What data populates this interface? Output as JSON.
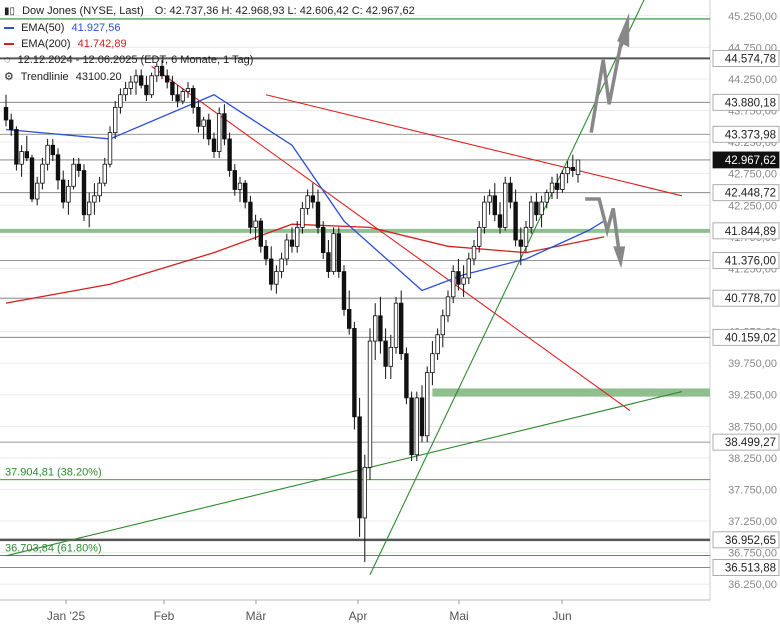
{
  "header": {
    "instrument": "Dow Jones (NYSE, Last)",
    "ohlc": "O: 42.737,36   H: 42.968,93   L: 42.606,42   C: 42.967,62",
    "ema50_label": "EMA(50)",
    "ema50_value": "41.927,56",
    "ema200_label": "EMA(200)",
    "ema200_value": "41.742,89",
    "period": "12.12.2024 - 12.06.2025  (EDT, 6 Monate, 1 Tag)",
    "trendline_label": "Trendlinie",
    "trendline_value": "43100.20"
  },
  "colors": {
    "ema50": "#2b50d8",
    "ema200": "#d42020",
    "trend_red": "#e02020",
    "trend_green": "#2f8a2f",
    "zone_green": "#8fbf8f",
    "last_price_bg": "#111111",
    "forecast_arrow": "#888888"
  },
  "chart_data": {
    "type": "candlestick",
    "ylim": [
      36000,
      45500
    ],
    "y_ticks": [
      "45.250,00",
      "44.750,00",
      "44.250,00",
      "43.750,00",
      "43.250,00",
      "42.750,00",
      "42.250,00",
      "41.750,00",
      "41.250,00",
      "40.750,00",
      "40.250,00",
      "39.750,00",
      "39.250,00",
      "38.750,00",
      "38.250,00",
      "37.750,00",
      "37.250,00",
      "36.750,00",
      "36.250,00"
    ],
    "x_ticks": [
      "Jan '25",
      "Feb",
      "Mär",
      "Apr",
      "Mai",
      "Jun"
    ],
    "level_labels": [
      {
        "value": 44574.78,
        "text": "44.574,78",
        "style": "box"
      },
      {
        "value": 43880.18,
        "text": "43.880,18",
        "style": "box"
      },
      {
        "value": 43373.98,
        "text": "43.373,98",
        "style": "box"
      },
      {
        "value": 42967.62,
        "text": "42.967,62",
        "style": "last"
      },
      {
        "value": 42448.72,
        "text": "42.448,72",
        "style": "box"
      },
      {
        "value": 41844.89,
        "text": "41.844,89",
        "style": "box"
      },
      {
        "value": 41376.0,
        "text": "41.376,00",
        "style": "box"
      },
      {
        "value": 40778.7,
        "text": "40.778,70",
        "style": "box"
      },
      {
        "value": 40159.02,
        "text": "40.159,02",
        "style": "box"
      },
      {
        "value": 38499.27,
        "text": "38.499,27",
        "style": "box"
      },
      {
        "value": 36952.65,
        "text": "36.952,65",
        "style": "box"
      },
      {
        "value": 36513.88,
        "text": "36.513,88",
        "style": "box"
      }
    ],
    "fib_labels": [
      {
        "value": 37904.81,
        "text": "37.904,81 (38.20%)"
      },
      {
        "value": 36703.84,
        "text": "36.703,84 (61.80%)"
      }
    ],
    "green_zone": [
      39220,
      39350
    ],
    "candles": [
      [
        43800,
        44000,
        43500,
        43600
      ],
      [
        43600,
        43700,
        43350,
        43450
      ],
      [
        43450,
        43500,
        42800,
        42900
      ],
      [
        42900,
        43200,
        42700,
        43100
      ],
      [
        43100,
        43350,
        42950,
        43000
      ],
      [
        43000,
        43050,
        42300,
        42350
      ],
      [
        42350,
        42700,
        42250,
        42600
      ],
      [
        42600,
        43000,
        42500,
        42900
      ],
      [
        42900,
        43300,
        42800,
        43200
      ],
      [
        43200,
        43300,
        42950,
        43050
      ],
      [
        43050,
        43150,
        42500,
        42650
      ],
      [
        42650,
        42800,
        42200,
        42300
      ],
      [
        42300,
        42650,
        42100,
        42550
      ],
      [
        42550,
        43000,
        42500,
        42900
      ],
      [
        42900,
        43000,
        42700,
        42800
      ],
      [
        42800,
        42900,
        42000,
        42100
      ],
      [
        42100,
        42450,
        41900,
        42300
      ],
      [
        42300,
        42600,
        42100,
        42400
      ],
      [
        42400,
        42700,
        42300,
        42600
      ],
      [
        42600,
        43000,
        42550,
        42900
      ],
      [
        42900,
        43500,
        42850,
        43400
      ],
      [
        43400,
        43900,
        43300,
        43800
      ],
      [
        43800,
        44100,
        43700,
        44000
      ],
      [
        44000,
        44200,
        43900,
        44100
      ],
      [
        44100,
        44300,
        44000,
        44200
      ],
      [
        44200,
        44400,
        44000,
        44300
      ],
      [
        44300,
        44400,
        44100,
        44150
      ],
      [
        44150,
        44300,
        43900,
        44000
      ],
      [
        44000,
        44350,
        43950,
        44300
      ],
      [
        44300,
        44500,
        44200,
        44450
      ],
      [
        44450,
        44550,
        44250,
        44300
      ],
      [
        44300,
        44400,
        44100,
        44200
      ],
      [
        44200,
        44300,
        43900,
        44000
      ],
      [
        44000,
        44150,
        43800,
        43900
      ],
      [
        43900,
        44100,
        43850,
        44050
      ],
      [
        44050,
        44200,
        43950,
        44100
      ],
      [
        44100,
        44150,
        43700,
        43800
      ],
      [
        43800,
        43900,
        43400,
        43500
      ],
      [
        43500,
        43650,
        43300,
        43600
      ],
      [
        43600,
        43700,
        43200,
        43300
      ],
      [
        43300,
        43400,
        43000,
        43100
      ],
      [
        43100,
        43800,
        43000,
        43700
      ],
      [
        43700,
        43850,
        43200,
        43300
      ],
      [
        43300,
        43400,
        42700,
        42800
      ],
      [
        42800,
        42900,
        42400,
        42500
      ],
      [
        42500,
        42700,
        42300,
        42600
      ],
      [
        42600,
        42650,
        42200,
        42300
      ],
      [
        42300,
        42400,
        41800,
        41900
      ],
      [
        41900,
        42100,
        41700,
        42000
      ],
      [
        42000,
        42050,
        41500,
        41600
      ],
      [
        41600,
        41700,
        41300,
        41400
      ],
      [
        41400,
        41600,
        40900,
        41000
      ],
      [
        41000,
        41300,
        40850,
        41200
      ],
      [
        41200,
        41500,
        41100,
        41400
      ],
      [
        41400,
        41800,
        41300,
        41700
      ],
      [
        41700,
        41900,
        41500,
        41600
      ],
      [
        41600,
        42000,
        41500,
        41900
      ],
      [
        41900,
        42300,
        41800,
        42200
      ],
      [
        42200,
        42500,
        42100,
        42400
      ],
      [
        42400,
        42600,
        42200,
        42300
      ],
      [
        42300,
        42500,
        41800,
        41900
      ],
      [
        41900,
        42000,
        41400,
        41500
      ],
      [
        41500,
        41700,
        41100,
        41200
      ],
      [
        41200,
        41900,
        41150,
        41800
      ],
      [
        41800,
        41900,
        41100,
        41200
      ],
      [
        41200,
        41300,
        40500,
        40600
      ],
      [
        40600,
        40900,
        40200,
        40300
      ],
      [
        40300,
        40400,
        38700,
        38900
      ],
      [
        38900,
        39200,
        37000,
        37300
      ],
      [
        37300,
        38300,
        36600,
        38100
      ],
      [
        38100,
        40300,
        37900,
        40100
      ],
      [
        40100,
        40700,
        39800,
        40500
      ],
      [
        40500,
        40800,
        39900,
        40100
      ],
      [
        40100,
        40300,
        39500,
        39700
      ],
      [
        39700,
        40200,
        39500,
        40000
      ],
      [
        40000,
        40800,
        39900,
        40700
      ],
      [
        40700,
        40900,
        39800,
        39900
      ],
      [
        39900,
        40000,
        39100,
        39200
      ],
      [
        39200,
        39300,
        38200,
        38300
      ],
      [
        38300,
        39300,
        38200,
        39200
      ],
      [
        39200,
        39400,
        38500,
        38600
      ],
      [
        38600,
        39700,
        38500,
        39600
      ],
      [
        39600,
        40100,
        39400,
        39900
      ],
      [
        39900,
        40300,
        39800,
        40200
      ],
      [
        40200,
        40600,
        40000,
        40500
      ],
      [
        40500,
        40900,
        40400,
        40800
      ],
      [
        40800,
        41300,
        40700,
        41200
      ],
      [
        41200,
        41400,
        40900,
        41000
      ],
      [
        41000,
        41300,
        40800,
        41100
      ],
      [
        41100,
        41500,
        41000,
        41400
      ],
      [
        41400,
        41700,
        41300,
        41600
      ],
      [
        41600,
        42000,
        41500,
        41900
      ],
      [
        41900,
        42400,
        41800,
        42300
      ],
      [
        42300,
        42500,
        42100,
        42400
      ],
      [
        42400,
        42600,
        42000,
        42100
      ],
      [
        42100,
        42300,
        41800,
        41900
      ],
      [
        41900,
        42700,
        41850,
        42600
      ],
      [
        42600,
        42700,
        42200,
        42300
      ],
      [
        42300,
        42500,
        41600,
        41700
      ],
      [
        41700,
        41900,
        41300,
        41600
      ],
      [
        41600,
        42000,
        41500,
        41900
      ],
      [
        41900,
        42400,
        41800,
        42300
      ],
      [
        42300,
        42450,
        42000,
        42100
      ],
      [
        42100,
        42400,
        41900,
        42300
      ],
      [
        42300,
        42500,
        42200,
        42450
      ],
      [
        42450,
        42700,
        42350,
        42600
      ],
      [
        42600,
        42750,
        42350,
        42500
      ],
      [
        42500,
        42800,
        42450,
        42750
      ],
      [
        42750,
        42950,
        42600,
        42850
      ],
      [
        42850,
        43050,
        42700,
        42800
      ],
      [
        42737.36,
        42968.93,
        42606.42,
        42967.62
      ]
    ],
    "ema50": [
      [
        0,
        43450
      ],
      [
        20,
        43300
      ],
      [
        40,
        44000
      ],
      [
        55,
        43200
      ],
      [
        65,
        42000
      ],
      [
        80,
        40900
      ],
      [
        88,
        41150
      ],
      [
        100,
        41400
      ],
      [
        112,
        41850
      ],
      [
        115,
        42000
      ]
    ],
    "ema200": [
      [
        0,
        40700
      ],
      [
        20,
        41000
      ],
      [
        40,
        41500
      ],
      [
        55,
        41950
      ],
      [
        70,
        41900
      ],
      [
        85,
        41600
      ],
      [
        100,
        41500
      ],
      [
        115,
        41750
      ]
    ],
    "trend_lines": [
      {
        "color": "red",
        "points": [
          [
            28,
            44450
          ],
          [
            120,
            39000
          ]
        ]
      },
      {
        "color": "red",
        "points": [
          [
            50,
            44000
          ],
          [
            130,
            42400
          ]
        ]
      },
      {
        "color": "green",
        "points": [
          [
            70,
            36400
          ],
          [
            125,
            45900
          ]
        ]
      },
      {
        "color": "green",
        "points": [
          [
            0,
            36700
          ],
          [
            130,
            39300
          ]
        ]
      }
    ]
  }
}
